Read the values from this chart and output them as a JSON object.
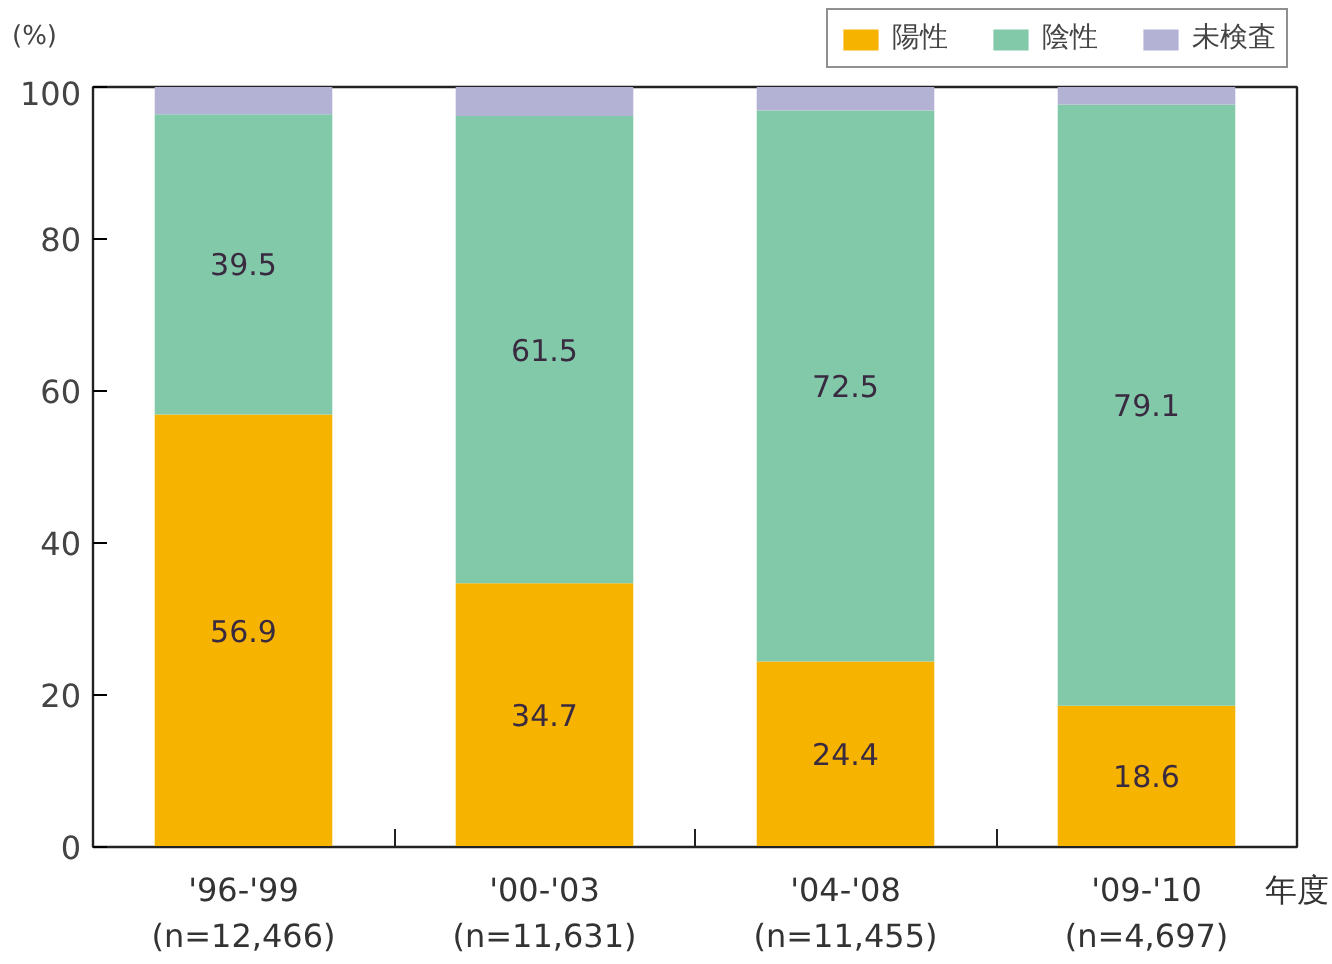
{
  "chart_data": {
    "type": "bar",
    "stacked": true,
    "ylabel": "(%)",
    "xlabel": "年度",
    "categories": [
      "'96-'99\n(n=12,466)",
      "'00-'03\n(n=11,631)",
      "'04-'08\n(n=11,455)",
      "'09-'10\n(n=4,697)"
    ],
    "series": [
      {
        "name": "陽性",
        "color": "#f6b400",
        "values": [
          56.9,
          34.7,
          24.4,
          18.6
        ],
        "value_labels": [
          "56.9",
          "34.7",
          "24.4",
          "18.6"
        ]
      },
      {
        "name": "陰性",
        "color": "#82c9aa",
        "values": [
          39.5,
          61.5,
          72.5,
          79.1
        ],
        "value_labels": [
          "39.5",
          "61.5",
          "72.5",
          "79.1"
        ]
      },
      {
        "name": "未検査",
        "color": "#b4b2d4",
        "values": [
          3.6,
          3.8,
          3.1,
          2.3
        ],
        "value_labels": [
          null,
          null,
          null,
          null
        ]
      }
    ],
    "ylim": [
      0,
      100
    ],
    "yticks": [
      0,
      20,
      40,
      60,
      80,
      100
    ],
    "grid": false,
    "legend": "top right"
  }
}
